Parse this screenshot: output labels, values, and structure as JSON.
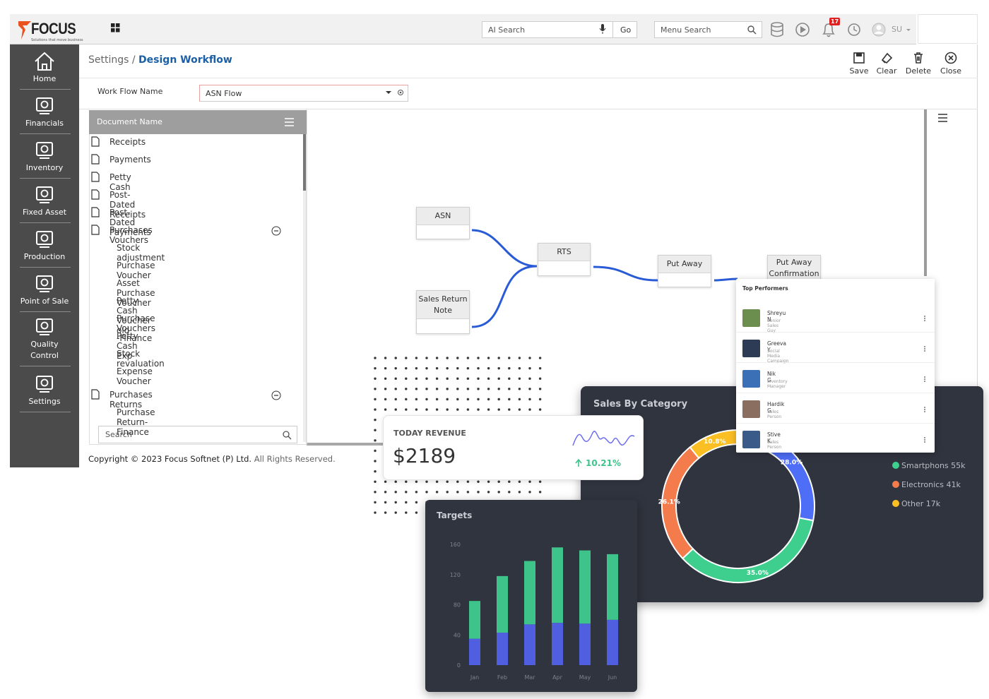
{
  "header": {
    "logo": "FOCUS",
    "tagline": "Solutions that move business",
    "ai_search": "AI Search",
    "go": "Go",
    "menu_search": "Menu Search",
    "notifications": "17",
    "user": "SU"
  },
  "sidebar": [
    "Home",
    "Financials",
    "Inventory",
    "Fixed Asset",
    "Production",
    "Point of Sale",
    "Quality Control",
    "Settings"
  ],
  "breadcrumb": {
    "parent": "Settings /",
    "current": "Design Workflow"
  },
  "toolbar": [
    "Save",
    "Clear",
    "Delete",
    "Close"
  ],
  "workflow_name": {
    "label": "Work Flow Name",
    "value": "ASN Flow"
  },
  "documents": {
    "header": "Document Name",
    "items": [
      {
        "label": "Receipts"
      },
      {
        "label": "Payments"
      },
      {
        "label": "Petty Cash"
      },
      {
        "label": "Post-Dated Receipts"
      },
      {
        "label": "Post-Dated Payments"
      },
      {
        "label": "Purchases Vouchers",
        "children": [
          "Stock adjustment",
          "Purchase Voucher",
          "Asset Purchase Voucher",
          "Petty Cash Voucher old",
          "Purchase Vouchers -Finance",
          "Petty Cash Exp",
          "Stock revaluation",
          "Expense Voucher"
        ]
      },
      {
        "label": "Purchases Returns",
        "children": [
          "Purchase Return-Finance"
        ]
      }
    ],
    "search": "Search"
  },
  "workflow": {
    "nodes": [
      "ASN",
      "Sales Return Note",
      "RTS",
      "Put Away",
      "Put Away Confirmation"
    ]
  },
  "footer": {
    "copyright": "Copyright © 2023 Focus Softnet (P) Ltd.",
    "rights": "All Rights Reserved."
  },
  "top_performers": {
    "title": "Top Performers",
    "people": [
      {
        "name": "Shreyu N",
        "role": "Senior Sales Guy"
      },
      {
        "name": "Greeva Y",
        "role": "Social Media Campaign"
      },
      {
        "name": "Nik G",
        "role": "Inventory Manager"
      },
      {
        "name": "Hardik G",
        "role": "Sales Person"
      },
      {
        "name": "Stive K",
        "role": "Sales Person"
      }
    ]
  },
  "revenue": {
    "title": "TODAY REVENUE",
    "value": "$2189",
    "change": "10.21%"
  },
  "chart_data": [
    {
      "type": "donut",
      "title": "Sales By Category",
      "values": [
        28.0,
        35.0,
        26.1,
        10.8
      ],
      "value_labels": [
        "28.0%",
        "35.0%",
        "26.1%",
        "10.8%"
      ],
      "colors": [
        "#4f6ef7",
        "#3ecf8e",
        "#f47c4c",
        "#fbbf24"
      ],
      "legend": [
        "Smartphons 55k",
        "Electronics 41k",
        "Other 17k"
      ],
      "legend_colors": [
        "#3ecf8e",
        "#f47c4c",
        "#fbbf24"
      ]
    },
    {
      "type": "bar",
      "stacked": true,
      "title": "Targets",
      "categories": [
        "Jan",
        "Feb",
        "Mar",
        "Apr",
        "May",
        "Jun"
      ],
      "series": [
        {
          "color": "#4f5fe0",
          "values": [
            35,
            43,
            54,
            56,
            55,
            60
          ]
        },
        {
          "color": "#3ec48a",
          "values": [
            50,
            75,
            84,
            100,
            97,
            87
          ]
        }
      ],
      "ylim": [
        0,
        160
      ],
      "yticks": [
        0,
        40,
        80,
        120,
        160
      ]
    }
  ]
}
